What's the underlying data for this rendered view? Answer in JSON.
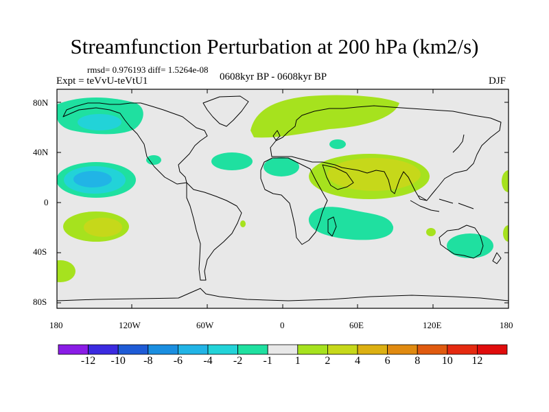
{
  "title": "Streamfunction Perturbation at 200 hPa (km2/s)",
  "stats": "rmsd= 0.976193 diff= 1.5264e-08",
  "experiment": "Expt = teVvU-teVtU1",
  "period": "0608kyr BP - 0608kyr BP",
  "season": "DJF",
  "lat_ticks": [
    "80N",
    "40N",
    "0",
    "40S",
    "80S"
  ],
  "lon_ticks": [
    "180",
    "120W",
    "60W",
    "0",
    "60E",
    "120E",
    "180"
  ],
  "colorbar": {
    "labels": [
      "-12",
      "-10",
      "-8",
      "-6",
      "-4",
      "-2",
      "-1",
      "1",
      "2",
      "4",
      "6",
      "8",
      "10",
      "12"
    ],
    "colors": [
      "#8a1ce6",
      "#3b2ae0",
      "#1e5bd6",
      "#1a8ee0",
      "#21b4e6",
      "#22d3d8",
      "#1fe0a0",
      "#e8e8e8",
      "#a6e21e",
      "#c6d81a",
      "#dcb012",
      "#e08a10",
      "#e05a0f",
      "#e52a10",
      "#e00c0c"
    ]
  },
  "colors": {
    "background": "#e8e8e8",
    "coast": "#000000"
  }
}
